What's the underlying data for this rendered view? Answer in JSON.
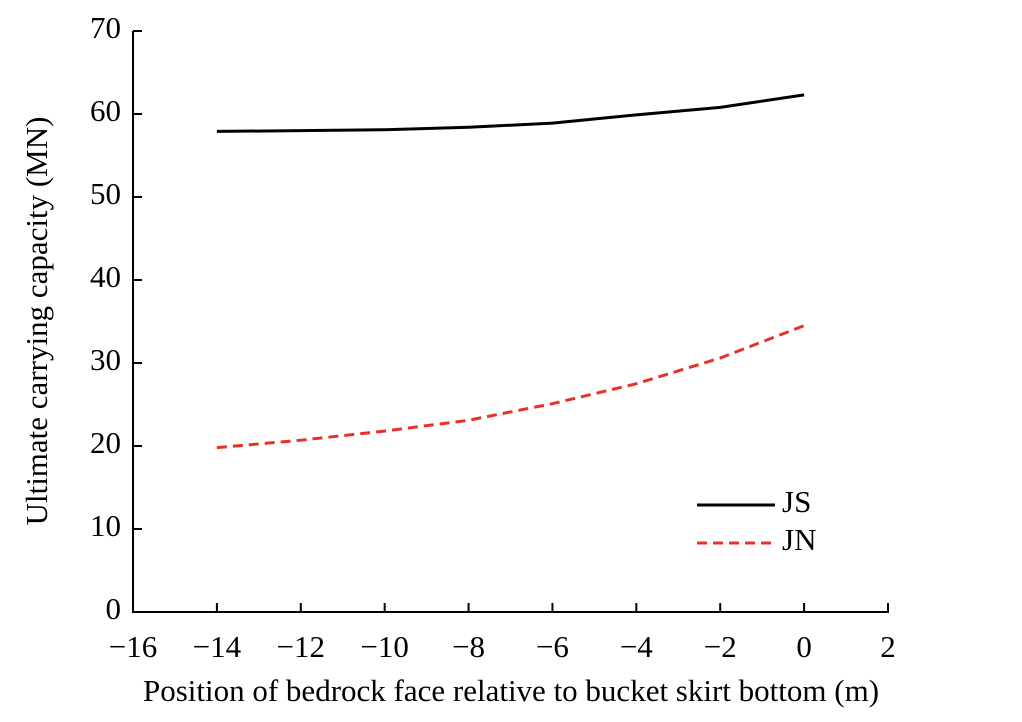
{
  "chart_data": {
    "type": "line",
    "x_label": "Position of bedrock face relative to bucket skirt bottom (m)",
    "y_label": "Ultimate carrying capacity (MN)",
    "x": [
      -14,
      -12,
      -10,
      -8,
      -6,
      -4,
      -2,
      0
    ],
    "series": [
      {
        "name": "JS",
        "color": "#000000",
        "dash": "solid",
        "values": [
          57.9,
          58.0,
          58.1,
          58.4,
          58.9,
          59.9,
          60.8,
          62.3
        ]
      },
      {
        "name": "JN",
        "color": "#e8302a",
        "dash": "dashed",
        "values": [
          19.8,
          20.7,
          21.8,
          23.1,
          25.1,
          27.5,
          30.6,
          34.5
        ]
      }
    ],
    "xlim": [
      -16,
      2
    ],
    "xticks": [
      {
        "value": -16,
        "label": "−16"
      },
      {
        "value": -14,
        "label": "−14"
      },
      {
        "value": -12,
        "label": "−12"
      },
      {
        "value": -10,
        "label": "−10"
      },
      {
        "value": -8,
        "label": "−8"
      },
      {
        "value": -6,
        "label": "−6"
      },
      {
        "value": -4,
        "label": "−4"
      },
      {
        "value": -2,
        "label": "−2"
      },
      0,
      2
    ],
    "ylim": [
      0,
      70
    ],
    "yticks": [
      0,
      10,
      20,
      30,
      40,
      50,
      60,
      70
    ],
    "legend": "lower right"
  }
}
